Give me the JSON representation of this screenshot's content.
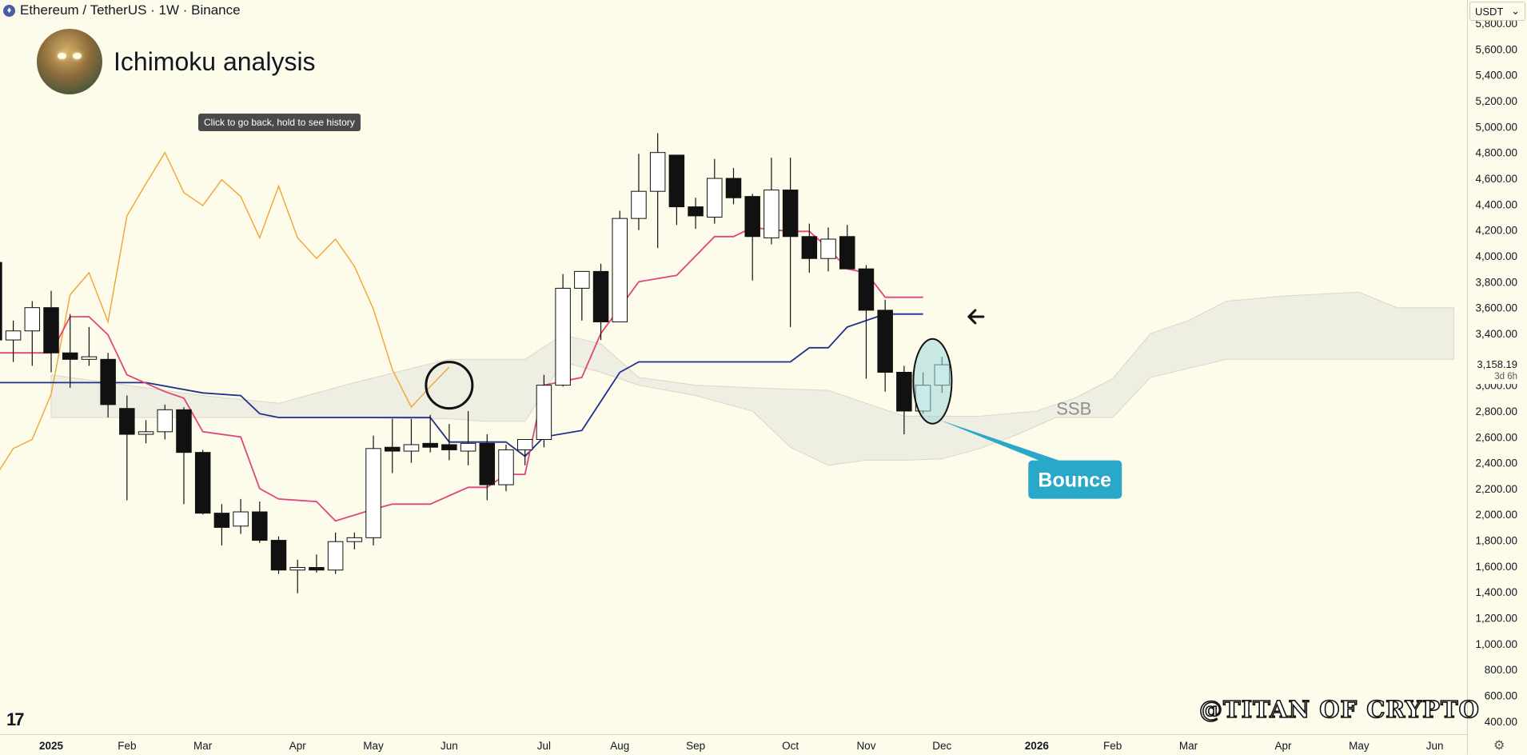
{
  "header": {
    "symbol_icon": "ethereum-icon",
    "title": "Ethereum / TetherUS · 1W · Binance"
  },
  "chart_title": "Ichimoku analysis",
  "tooltip": "Click to go back, hold to see history",
  "currency": "USDT",
  "watermark": "@TITAN OF CRYPTO",
  "last_price": {
    "value": "3,158.19",
    "countdown": "3d 6h"
  },
  "annotations": {
    "ssb": "SSB",
    "bounce": "Bounce"
  },
  "colors": {
    "background": "#fdfbea",
    "tenkan": "#e0457b",
    "kijun": "#1e2f8c",
    "lagging": "#f0a534",
    "cloud": "#ecebe0",
    "bounce": "#2aa8c9"
  },
  "chart_data": {
    "type": "candlestick",
    "title": "Ichimoku analysis",
    "timeframe": "1W",
    "y_ticks": [
      400,
      600,
      800,
      1000,
      1200,
      1400,
      1600,
      1800,
      2000,
      2200,
      2400,
      2600,
      2800,
      3000,
      3200,
      3400,
      3600,
      3800,
      4000,
      4200,
      4400,
      4600,
      4800,
      5000,
      5200,
      5400,
      5600,
      5800
    ],
    "y_tick_labels": [
      "400.00",
      "600.00",
      "800.00",
      "1,000.00",
      "1,200.00",
      "1,400.00",
      "1,600.00",
      "1,800.00",
      "2,000.00",
      "2,200.00",
      "2,400.00",
      "2,600.00",
      "2,800.00",
      "3,000.00",
      "3,200.00",
      "3,400.00",
      "3,600.00",
      "3,800.00",
      "4,000.00",
      "4,200.00",
      "4,400.00",
      "4,600.00",
      "4,800.00",
      "5,000.00",
      "5,200.00",
      "5,400.00",
      "5,600.00",
      "5,800.00"
    ],
    "ylim": [
      300,
      5980
    ],
    "x_ticks": [
      {
        "label": "2025",
        "week": 0,
        "bold": true
      },
      {
        "label": "Feb",
        "week": 4
      },
      {
        "label": "Mar",
        "week": 8
      },
      {
        "label": "Apr",
        "week": 13
      },
      {
        "label": "May",
        "week": 17
      },
      {
        "label": "Jun",
        "week": 21
      },
      {
        "label": "Jul",
        "week": 26
      },
      {
        "label": "Aug",
        "week": 30
      },
      {
        "label": "Sep",
        "week": 34
      },
      {
        "label": "Oct",
        "week": 39
      },
      {
        "label": "Nov",
        "week": 43
      },
      {
        "label": "Dec",
        "week": 47
      },
      {
        "label": "2026",
        "week": 52,
        "bold": true
      },
      {
        "label": "Feb",
        "week": 56
      },
      {
        "label": "Mar",
        "week": 60
      },
      {
        "label": "Apr",
        "week": 65
      },
      {
        "label": "May",
        "week": 69
      },
      {
        "label": "Jun",
        "week": 73
      }
    ],
    "xlim_weeks": [
      -2.7,
      74.7
    ],
    "candles": [
      {
        "w": -3,
        "o": 3950,
        "h": 4100,
        "l": 3250,
        "c": 3350
      },
      {
        "w": -2,
        "o": 3350,
        "h": 3500,
        "l": 3180,
        "c": 3420
      },
      {
        "w": -1,
        "o": 3420,
        "h": 3650,
        "l": 3150,
        "c": 3600
      },
      {
        "w": 0,
        "o": 3600,
        "h": 3730,
        "l": 3100,
        "c": 3250
      },
      {
        "w": 1,
        "o": 3250,
        "h": 3550,
        "l": 2980,
        "c": 3200
      },
      {
        "w": 2,
        "o": 3200,
        "h": 3450,
        "l": 3150,
        "c": 3220
      },
      {
        "w": 3,
        "o": 3200,
        "h": 3250,
        "l": 2750,
        "c": 2850
      },
      {
        "w": 4,
        "o": 2820,
        "h": 2920,
        "l": 2110,
        "c": 2620
      },
      {
        "w": 5,
        "o": 2620,
        "h": 2730,
        "l": 2550,
        "c": 2640
      },
      {
        "w": 6,
        "o": 2640,
        "h": 2850,
        "l": 2580,
        "c": 2810
      },
      {
        "w": 7,
        "o": 2810,
        "h": 2830,
        "l": 2080,
        "c": 2480
      },
      {
        "w": 8,
        "o": 2480,
        "h": 2500,
        "l": 2000,
        "c": 2010
      },
      {
        "w": 9,
        "o": 2010,
        "h": 2080,
        "l": 1760,
        "c": 1900
      },
      {
        "w": 10,
        "o": 1910,
        "h": 2120,
        "l": 1850,
        "c": 2020
      },
      {
        "w": 11,
        "o": 2020,
        "h": 2100,
        "l": 1780,
        "c": 1800
      },
      {
        "w": 12,
        "o": 1800,
        "h": 1830,
        "l": 1540,
        "c": 1570
      },
      {
        "w": 13,
        "o": 1570,
        "h": 1650,
        "l": 1390,
        "c": 1590
      },
      {
        "w": 14,
        "o": 1590,
        "h": 1690,
        "l": 1550,
        "c": 1570
      },
      {
        "w": 15,
        "o": 1570,
        "h": 1860,
        "l": 1540,
        "c": 1790
      },
      {
        "w": 16,
        "o": 1790,
        "h": 1860,
        "l": 1730,
        "c": 1820
      },
      {
        "w": 17,
        "o": 1820,
        "h": 2610,
        "l": 1760,
        "c": 2510
      },
      {
        "w": 18,
        "o": 2520,
        "h": 2740,
        "l": 2320,
        "c": 2490
      },
      {
        "w": 19,
        "o": 2490,
        "h": 2740,
        "l": 2400,
        "c": 2540
      },
      {
        "w": 20,
        "o": 2550,
        "h": 2770,
        "l": 2480,
        "c": 2520
      },
      {
        "w": 21,
        "o": 2540,
        "h": 2700,
        "l": 2420,
        "c": 2500
      },
      {
        "w": 22,
        "o": 2490,
        "h": 2800,
        "l": 2380,
        "c": 2550
      },
      {
        "w": 23,
        "o": 2550,
        "h": 2620,
        "l": 2110,
        "c": 2230
      },
      {
        "w": 24,
        "o": 2230,
        "h": 2540,
        "l": 2180,
        "c": 2500
      },
      {
        "w": 25,
        "o": 2500,
        "h": 2580,
        "l": 2380,
        "c": 2580
      },
      {
        "w": 26,
        "o": 2580,
        "h": 3080,
        "l": 2520,
        "c": 3000
      },
      {
        "w": 27,
        "o": 3000,
        "h": 3860,
        "l": 2990,
        "c": 3750
      },
      {
        "w": 28,
        "o": 3750,
        "h": 3880,
        "l": 3500,
        "c": 3880
      },
      {
        "w": 29,
        "o": 3880,
        "h": 3940,
        "l": 3350,
        "c": 3490
      },
      {
        "w": 30,
        "o": 3490,
        "h": 4350,
        "l": 3490,
        "c": 4290
      },
      {
        "w": 31,
        "o": 4290,
        "h": 4790,
        "l": 4200,
        "c": 4500
      },
      {
        "w": 32,
        "o": 4500,
        "h": 4950,
        "l": 4060,
        "c": 4800
      },
      {
        "w": 33,
        "o": 4780,
        "h": 4780,
        "l": 4240,
        "c": 4380
      },
      {
        "w": 34,
        "o": 4380,
        "h": 4450,
        "l": 4210,
        "c": 4310
      },
      {
        "w": 35,
        "o": 4300,
        "h": 4750,
        "l": 4250,
        "c": 4600
      },
      {
        "w": 36,
        "o": 4600,
        "h": 4680,
        "l": 4400,
        "c": 4450
      },
      {
        "w": 37,
        "o": 4460,
        "h": 4480,
        "l": 3810,
        "c": 4150
      },
      {
        "w": 38,
        "o": 4140,
        "h": 4760,
        "l": 4090,
        "c": 4510
      },
      {
        "w": 39,
        "o": 4510,
        "h": 4760,
        "l": 3450,
        "c": 4150
      },
      {
        "w": 40,
        "o": 4150,
        "h": 4250,
        "l": 3870,
        "c": 3980
      },
      {
        "w": 41,
        "o": 3980,
        "h": 4220,
        "l": 3880,
        "c": 4130
      },
      {
        "w": 42,
        "o": 4150,
        "h": 4240,
        "l": 3900,
        "c": 3900
      },
      {
        "w": 43,
        "o": 3900,
        "h": 3930,
        "l": 3050,
        "c": 3580
      },
      {
        "w": 44,
        "o": 3580,
        "h": 3660,
        "l": 2950,
        "c": 3100
      },
      {
        "w": 45,
        "o": 3100,
        "h": 3150,
        "l": 2620,
        "c": 2800
      },
      {
        "w": 46,
        "o": 2800,
        "h": 3100,
        "l": 2780,
        "c": 3000
      },
      {
        "w": 47,
        "o": 3000,
        "h": 3220,
        "l": 2940,
        "c": 3158
      }
    ],
    "tenkan": [
      {
        "w": -3,
        "v": 3250
      },
      {
        "w": 0,
        "v": 3250
      },
      {
        "w": 1,
        "v": 3530
      },
      {
        "w": 2,
        "v": 3530
      },
      {
        "w": 3,
        "v": 3390
      },
      {
        "w": 4,
        "v": 3080
      },
      {
        "w": 6,
        "v": 2950
      },
      {
        "w": 7,
        "v": 2900
      },
      {
        "w": 8,
        "v": 2640
      },
      {
        "w": 10,
        "v": 2600
      },
      {
        "w": 11,
        "v": 2200
      },
      {
        "w": 12,
        "v": 2120
      },
      {
        "w": 14,
        "v": 2100
      },
      {
        "w": 15,
        "v": 1950
      },
      {
        "w": 17,
        "v": 2040
      },
      {
        "w": 18,
        "v": 2080
      },
      {
        "w": 20,
        "v": 2080
      },
      {
        "w": 22,
        "v": 2210
      },
      {
        "w": 23,
        "v": 2210
      },
      {
        "w": 24,
        "v": 2310
      },
      {
        "w": 25,
        "v": 2310
      },
      {
        "w": 26,
        "v": 3000
      },
      {
        "w": 28,
        "v": 3060
      },
      {
        "w": 29,
        "v": 3400
      },
      {
        "w": 30,
        "v": 3600
      },
      {
        "w": 31,
        "v": 3800
      },
      {
        "w": 33,
        "v": 3850
      },
      {
        "w": 35,
        "v": 4150
      },
      {
        "w": 36,
        "v": 4150
      },
      {
        "w": 37,
        "v": 4220
      },
      {
        "w": 39,
        "v": 4190
      },
      {
        "w": 40,
        "v": 4190
      },
      {
        "w": 41,
        "v": 4060
      },
      {
        "w": 42,
        "v": 3900
      },
      {
        "w": 43,
        "v": 3870
      },
      {
        "w": 44,
        "v": 3680
      },
      {
        "w": 46,
        "v": 3680
      }
    ],
    "kijun": [
      {
        "w": -3,
        "v": 3020
      },
      {
        "w": 5,
        "v": 3020
      },
      {
        "w": 8,
        "v": 2940
      },
      {
        "w": 10,
        "v": 2920
      },
      {
        "w": 11,
        "v": 2780
      },
      {
        "w": 12,
        "v": 2750
      },
      {
        "w": 20,
        "v": 2750
      },
      {
        "w": 21,
        "v": 2560
      },
      {
        "w": 24,
        "v": 2560
      },
      {
        "w": 25,
        "v": 2450
      },
      {
        "w": 26,
        "v": 2600
      },
      {
        "w": 28,
        "v": 2650
      },
      {
        "w": 30,
        "v": 3100
      },
      {
        "w": 31,
        "v": 3180
      },
      {
        "w": 39,
        "v": 3180
      },
      {
        "w": 40,
        "v": 3290
      },
      {
        "w": 41,
        "v": 3290
      },
      {
        "w": 42,
        "v": 3450
      },
      {
        "w": 44,
        "v": 3550
      },
      {
        "w": 46,
        "v": 3550
      }
    ],
    "lagging": [
      {
        "w": -3,
        "v": 2280
      },
      {
        "w": -2,
        "v": 2510
      },
      {
        "w": -1,
        "v": 2580
      },
      {
        "w": 0,
        "v": 2930
      },
      {
        "w": 1,
        "v": 3700
      },
      {
        "w": 2,
        "v": 3870
      },
      {
        "w": 3,
        "v": 3490
      },
      {
        "w": 4,
        "v": 4310
      },
      {
        "w": 5,
        "v": 4560
      },
      {
        "w": 6,
        "v": 4800
      },
      {
        "w": 7,
        "v": 4490
      },
      {
        "w": 8,
        "v": 4390
      },
      {
        "w": 9,
        "v": 4590
      },
      {
        "w": 10,
        "v": 4460
      },
      {
        "w": 11,
        "v": 4140
      },
      {
        "w": 12,
        "v": 4540
      },
      {
        "w": 13,
        "v": 4140
      },
      {
        "w": 14,
        "v": 3980
      },
      {
        "w": 15,
        "v": 4130
      },
      {
        "w": 16,
        "v": 3920
      },
      {
        "w": 17,
        "v": 3590
      },
      {
        "w": 18,
        "v": 3120
      },
      {
        "w": 19,
        "v": 2830
      },
      {
        "w": 20,
        "v": 2990
      },
      {
        "w": 21,
        "v": 3140
      }
    ],
    "cloud": {
      "upper": [
        {
          "w": 0,
          "v": 3080
        },
        {
          "w": 4,
          "v": 3000
        },
        {
          "w": 8,
          "v": 2920
        },
        {
          "w": 12,
          "v": 2860
        },
        {
          "w": 16,
          "v": 3020
        },
        {
          "w": 19,
          "v": 3130
        },
        {
          "w": 21,
          "v": 3200
        },
        {
          "w": 23,
          "v": 3200
        },
        {
          "w": 25,
          "v": 3200
        },
        {
          "w": 27,
          "v": 3390
        },
        {
          "w": 29,
          "v": 3320
        },
        {
          "w": 31,
          "v": 3060
        },
        {
          "w": 34,
          "v": 3000
        },
        {
          "w": 37,
          "v": 2980
        },
        {
          "w": 41,
          "v": 2960
        },
        {
          "w": 45,
          "v": 2760
        },
        {
          "w": 49,
          "v": 2760
        },
        {
          "w": 52,
          "v": 2800
        },
        {
          "w": 54,
          "v": 2900
        },
        {
          "w": 56,
          "v": 3050
        },
        {
          "w": 58,
          "v": 3400
        },
        {
          "w": 60,
          "v": 3500
        },
        {
          "w": 62,
          "v": 3650
        },
        {
          "w": 65,
          "v": 3690
        },
        {
          "w": 69,
          "v": 3720
        },
        {
          "w": 71,
          "v": 3600
        },
        {
          "w": 74,
          "v": 3600
        }
      ],
      "lower": [
        {
          "w": 0,
          "v": 2750
        },
        {
          "w": 4,
          "v": 2750
        },
        {
          "w": 8,
          "v": 2750
        },
        {
          "w": 12,
          "v": 2750
        },
        {
          "w": 16,
          "v": 2750
        },
        {
          "w": 19,
          "v": 2740
        },
        {
          "w": 21,
          "v": 2740
        },
        {
          "w": 23,
          "v": 2720
        },
        {
          "w": 25,
          "v": 2720
        },
        {
          "w": 27,
          "v": 3180
        },
        {
          "w": 29,
          "v": 3100
        },
        {
          "w": 31,
          "v": 3000
        },
        {
          "w": 34,
          "v": 2920
        },
        {
          "w": 37,
          "v": 2800
        },
        {
          "w": 39,
          "v": 2520
        },
        {
          "w": 41,
          "v": 2380
        },
        {
          "w": 43,
          "v": 2420
        },
        {
          "w": 45,
          "v": 2420
        },
        {
          "w": 47,
          "v": 2430
        },
        {
          "w": 49,
          "v": 2510
        },
        {
          "w": 51,
          "v": 2620
        },
        {
          "w": 53,
          "v": 2750
        },
        {
          "w": 56,
          "v": 2750
        },
        {
          "w": 58,
          "v": 3060
        },
        {
          "w": 62,
          "v": 3200
        },
        {
          "w": 66,
          "v": 3200
        },
        {
          "w": 70,
          "v": 3200
        },
        {
          "w": 74,
          "v": 3200
        }
      ]
    },
    "markers": {
      "circle": {
        "w": 21,
        "v": 3000
      },
      "arrow": {
        "w": 48.5,
        "v": 3530
      },
      "ssb_label": {
        "w": 54,
        "v": 2820
      },
      "bounce_ellipse": {
        "w": 46.5,
        "v": 3030
      },
      "bounce_label": {
        "w": 54,
        "v": 2270
      }
    }
  }
}
